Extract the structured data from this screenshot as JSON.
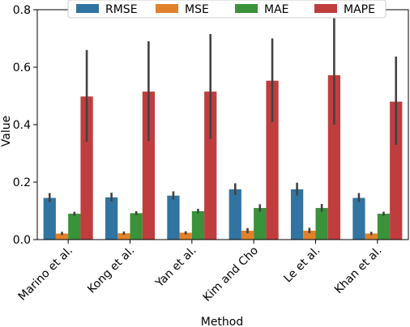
{
  "chart_data": {
    "type": "bar",
    "title": "",
    "xlabel": "Method",
    "ylabel": "Value",
    "ylim": [
      0,
      0.8
    ],
    "yticks": [
      "0.0",
      "0.2",
      "0.4",
      "0.6",
      "0.8"
    ],
    "grid": false,
    "legend_position": "top",
    "categories": [
      "Marino et al.",
      "Kong et al.",
      "Yan et al.",
      "Kim and Cho",
      "Le et al.",
      "Khan et al."
    ],
    "series": [
      {
        "name": "RMSE",
        "color": "#3274a1",
        "values": [
          0.145,
          0.147,
          0.153,
          0.175,
          0.175,
          0.145
        ],
        "error_low": [
          0.13,
          0.133,
          0.14,
          0.155,
          0.153,
          0.131
        ],
        "error_high": [
          0.162,
          0.163,
          0.168,
          0.196,
          0.198,
          0.162
        ]
      },
      {
        "name": "MSE",
        "color": "#e1812c",
        "values": [
          0.021,
          0.022,
          0.024,
          0.031,
          0.031,
          0.021
        ],
        "error_low": [
          0.016,
          0.017,
          0.018,
          0.022,
          0.022,
          0.016
        ],
        "error_high": [
          0.027,
          0.028,
          0.029,
          0.04,
          0.041,
          0.027
        ]
      },
      {
        "name": "MAE",
        "color": "#3a923a",
        "values": [
          0.09,
          0.092,
          0.099,
          0.11,
          0.11,
          0.09
        ],
        "error_low": [
          0.083,
          0.085,
          0.092,
          0.097,
          0.097,
          0.083
        ],
        "error_high": [
          0.097,
          0.099,
          0.107,
          0.123,
          0.124,
          0.097
        ]
      },
      {
        "name": "MAPE",
        "color": "#c03d3e",
        "values": [
          0.498,
          0.515,
          0.515,
          0.553,
          0.572,
          0.48
        ],
        "error_low": [
          0.34,
          0.343,
          0.35,
          0.41,
          0.4,
          0.33
        ],
        "error_high": [
          0.66,
          0.69,
          0.715,
          0.7,
          0.77,
          0.637
        ]
      }
    ]
  }
}
